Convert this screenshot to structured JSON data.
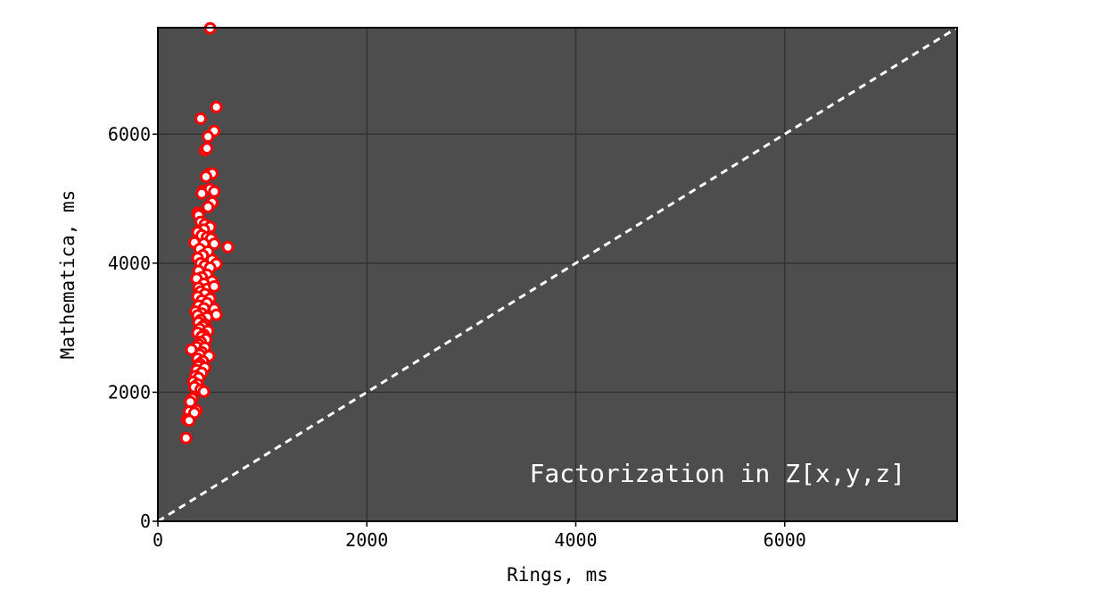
{
  "chart_data": {
    "type": "scatter",
    "title": "",
    "xlabel": "Rings, ms",
    "ylabel": "Mathematica, ms",
    "xlim": [
      0,
      7650
    ],
    "ylim": [
      0,
      7650
    ],
    "xticks": [
      0,
      2000,
      4000,
      6000
    ],
    "yticks": [
      0,
      2000,
      4000,
      6000
    ],
    "xtick_labels": [
      "0",
      "2000",
      "4000",
      "6000"
    ],
    "ytick_labels": [
      "0",
      "2000",
      "4000",
      "6000"
    ],
    "grid": true,
    "annotation": "Factorization in Z[x,y,z]",
    "reference_line": {
      "style": "dashed",
      "color": "#ffffff",
      "from": [
        0,
        0
      ],
      "to": [
        7650,
        7650
      ]
    },
    "colors": {
      "plot_background": "#4d4d4d",
      "marker_edge": "#ff0000",
      "marker_face": "#ffffff",
      "grid": "#333333"
    },
    "series": [
      {
        "values": [
          [
            500,
            7640
          ],
          [
            560,
            6420
          ],
          [
            410,
            6240
          ],
          [
            540,
            6050
          ],
          [
            480,
            5960
          ],
          [
            450,
            5750
          ],
          [
            470,
            5780
          ],
          [
            490,
            5380
          ],
          [
            520,
            5390
          ],
          [
            460,
            5340
          ],
          [
            430,
            5120
          ],
          [
            500,
            5150
          ],
          [
            540,
            5110
          ],
          [
            420,
            5080
          ],
          [
            520,
            4940
          ],
          [
            480,
            4870
          ],
          [
            380,
            4780
          ],
          [
            390,
            4740
          ],
          [
            410,
            4640
          ],
          [
            450,
            4600
          ],
          [
            500,
            4560
          ],
          [
            440,
            4520
          ],
          [
            380,
            4480
          ],
          [
            420,
            4430
          ],
          [
            470,
            4400
          ],
          [
            510,
            4380
          ],
          [
            350,
            4320
          ],
          [
            440,
            4300
          ],
          [
            540,
            4300
          ],
          [
            670,
            4250
          ],
          [
            400,
            4220
          ],
          [
            480,
            4180
          ],
          [
            430,
            4120
          ],
          [
            380,
            4080
          ],
          [
            520,
            4050
          ],
          [
            410,
            4000
          ],
          [
            560,
            3990
          ],
          [
            450,
            3960
          ],
          [
            500,
            3930
          ],
          [
            390,
            3880
          ],
          [
            470,
            3820
          ],
          [
            420,
            3780
          ],
          [
            370,
            3760
          ],
          [
            520,
            3720
          ],
          [
            440,
            3680
          ],
          [
            390,
            3620
          ],
          [
            470,
            3600
          ],
          [
            540,
            3640
          ],
          [
            410,
            3560
          ],
          [
            450,
            3520
          ],
          [
            380,
            3480
          ],
          [
            500,
            3450
          ],
          [
            420,
            3420
          ],
          [
            470,
            3380
          ],
          [
            390,
            3340
          ],
          [
            440,
            3300
          ],
          [
            540,
            3290
          ],
          [
            360,
            3250
          ],
          [
            420,
            3220
          ],
          [
            380,
            3190
          ],
          [
            560,
            3200
          ],
          [
            470,
            3160
          ],
          [
            410,
            3120
          ],
          [
            390,
            3080
          ],
          [
            450,
            3050
          ],
          [
            430,
            3020
          ],
          [
            400,
            2980
          ],
          [
            480,
            2950
          ],
          [
            380,
            2920
          ],
          [
            440,
            2890
          ],
          [
            420,
            2860
          ],
          [
            460,
            2820
          ],
          [
            410,
            2780
          ],
          [
            390,
            2740
          ],
          [
            370,
            2700
          ],
          [
            450,
            2690
          ],
          [
            320,
            2660
          ],
          [
            420,
            2620
          ],
          [
            400,
            2580
          ],
          [
            490,
            2560
          ],
          [
            380,
            2520
          ],
          [
            430,
            2480
          ],
          [
            400,
            2440
          ],
          [
            390,
            2400
          ],
          [
            450,
            2380
          ],
          [
            370,
            2340
          ],
          [
            420,
            2300
          ],
          [
            360,
            2250
          ],
          [
            390,
            2220
          ],
          [
            340,
            2160
          ],
          [
            380,
            2120
          ],
          [
            350,
            2080
          ],
          [
            410,
            2040
          ],
          [
            440,
            2010
          ],
          [
            330,
            1900
          ],
          [
            310,
            1850
          ],
          [
            370,
            1720
          ],
          [
            300,
            1700
          ],
          [
            350,
            1680
          ],
          [
            280,
            1580
          ],
          [
            300,
            1560
          ],
          [
            270,
            1290
          ]
        ]
      }
    ]
  }
}
